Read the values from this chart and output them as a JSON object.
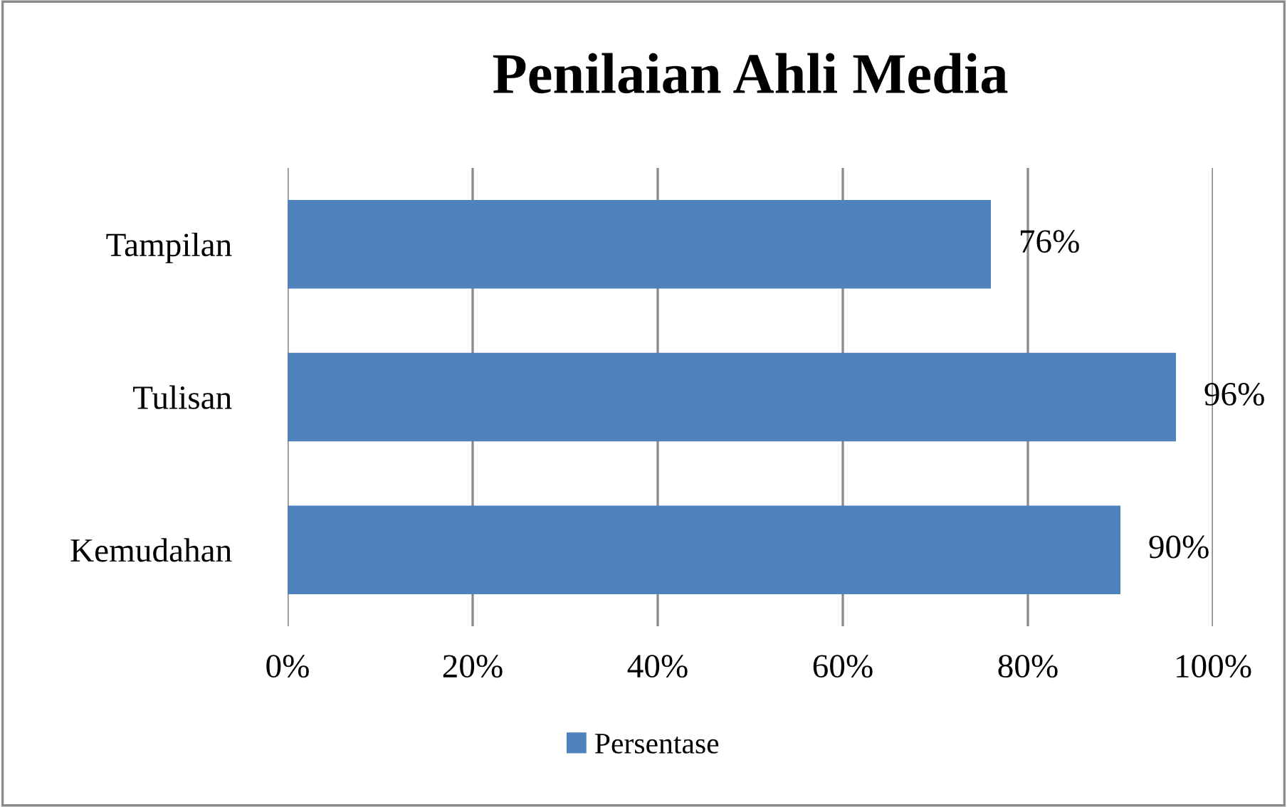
{
  "chart_data": {
    "type": "bar",
    "orientation": "horizontal",
    "title": "Penilaian Ahli Media",
    "categories": [
      "Tampilan",
      "Tulisan",
      "Kemudahan"
    ],
    "series": [
      {
        "name": "Persentase",
        "color": "#4f81bd",
        "values": [
          76,
          96,
          90
        ],
        "value_labels": [
          "76%",
          "96%",
          "90%"
        ]
      }
    ],
    "xlim": [
      0,
      100
    ],
    "xticks": [
      {
        "value": 0,
        "label": "0%"
      },
      {
        "value": 20,
        "label": "20%"
      },
      {
        "value": 40,
        "label": "40%"
      },
      {
        "value": 60,
        "label": "60%"
      },
      {
        "value": 80,
        "label": "80%"
      },
      {
        "value": 100,
        "label": "100%"
      }
    ],
    "grid": "x",
    "legend": "bottom"
  }
}
